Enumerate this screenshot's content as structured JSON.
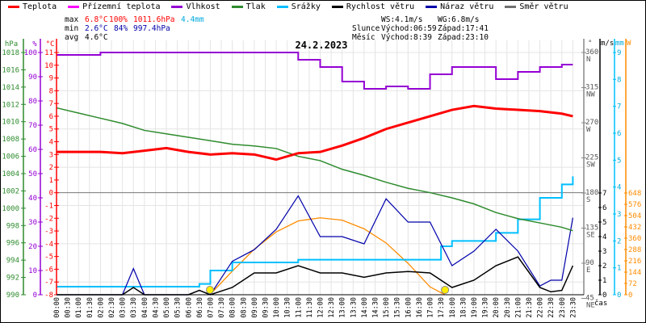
{
  "legend": [
    {
      "label": "Teplota",
      "color": "#ff0000"
    },
    {
      "label": "Přízemní teplota",
      "color": "#ff00ff"
    },
    {
      "label": "Vlhkost",
      "color": "#9400d3"
    },
    {
      "label": "Tlak",
      "color": "#2e8b2e"
    },
    {
      "label": "Srážky",
      "color": "#00bfff"
    },
    {
      "label": "Rychlost větru",
      "color": "#000000"
    },
    {
      "label": "Náraz větru",
      "color": "#0000aa"
    },
    {
      "label": "Směr větru",
      "color": "#707070"
    }
  ],
  "stats": {
    "max_label": "max",
    "min_label": "min",
    "avg_label": "avg",
    "max_temp": "6.8°C",
    "max_hum": "100%",
    "max_press": "1011.6hPa",
    "max_rain": "4.4mm",
    "min_temp": "2.6°C",
    "min_hum": "84%",
    "min_press": "997.4hPa",
    "avg_temp": "4.6°C",
    "ws": "WS:4.1m/s",
    "wg": "WG:6.8m/s",
    "sun_label": "Slunce",
    "sun_rise": "Východ:06:59",
    "sun_set": "Západ:17:41",
    "moon_label": "Měsíc",
    "moon_rise": "Východ:8:39",
    "moon_set": "Západ:23:10"
  },
  "chart_data": {
    "type": "line",
    "title": "24.2.2023",
    "xlabel": "čas",
    "x_ticks": [
      "00:00",
      "00:30",
      "01:00",
      "01:30",
      "02:00",
      "02:30",
      "03:00",
      "03:30",
      "04:00",
      "04:30",
      "05:00",
      "05:30",
      "06:00",
      "06:30",
      "07:00",
      "07:30",
      "08:00",
      "08:30",
      "09:00",
      "09:30",
      "10:00",
      "10:30",
      "11:00",
      "11:30",
      "12:00",
      "12:30",
      "13:00",
      "13:30",
      "14:00",
      "14:30",
      "15:00",
      "15:30",
      "16:00",
      "16:30",
      "17:00",
      "17:30",
      "18:00",
      "18:30",
      "19:00",
      "19:30",
      "20:00",
      "20:30",
      "21:00",
      "21:30",
      "22:00",
      "22:30",
      "23:00",
      "23:30"
    ],
    "axes": {
      "pressure": {
        "unit": "hPa",
        "range": [
          990,
          1018
        ],
        "ticks": [
          "1018",
          "1016",
          "1014",
          "1012",
          "1010",
          "1008",
          "1006",
          "1004",
          "1002",
          "1000",
          "998",
          "996",
          "994",
          "992",
          "990"
        ]
      },
      "humidity": {
        "unit": "%",
        "range": [
          0,
          100
        ],
        "ticks": [
          "100",
          "90",
          "80",
          "70",
          "60",
          "50",
          "40",
          "30",
          "20",
          "10",
          "0"
        ]
      },
      "temperature": {
        "unit": "°C",
        "range": [
          -8,
          11
        ],
        "ticks": [
          "11",
          "10",
          "9",
          "8",
          "7",
          "6",
          "5",
          "4",
          "3",
          "2",
          "1",
          "0",
          "-1",
          "-2",
          "-3",
          "-4",
          "-5",
          "-6",
          "-7",
          "-8"
        ]
      },
      "direction": {
        "unit": "°",
        "ticks": [
          {
            "v": "360",
            "d": "N"
          },
          {
            "v": "315",
            "d": "NW"
          },
          {
            "v": "270",
            "d": "W"
          },
          {
            "v": "225",
            "d": "SW"
          },
          {
            "v": "180",
            "d": "S"
          },
          {
            "v": "135",
            "d": "SE"
          },
          {
            "v": "90",
            "d": "E"
          },
          {
            "v": "45",
            "d": "NE"
          }
        ]
      },
      "wind": {
        "unit": "m/s",
        "range": [
          0,
          7
        ],
        "ticks": [
          "7",
          "6",
          "5",
          "4",
          "3",
          "2",
          "1",
          "0"
        ]
      },
      "rain": {
        "unit": "mm",
        "range": [
          0,
          9
        ],
        "ticks": [
          "9",
          "8",
          "7",
          "6",
          "5",
          "4",
          "3",
          "2",
          "1",
          "0"
        ]
      },
      "solar": {
        "unit": "W",
        "range": [
          0,
          648
        ],
        "ticks": [
          "648",
          "576",
          "504",
          "432",
          "360",
          "288",
          "216",
          "144",
          "72",
          "0"
        ]
      }
    },
    "series": [
      {
        "name": "Teplota",
        "color": "#ff0000",
        "unit": "°C",
        "x": [
          0,
          1,
          2,
          3,
          4,
          5,
          6,
          7,
          8,
          9,
          10,
          11,
          12,
          13,
          14,
          15,
          16,
          17,
          18,
          19,
          20,
          21,
          22,
          23,
          23.5
        ],
        "values": [
          3.2,
          3.2,
          3.2,
          3.1,
          3.3,
          3.5,
          3.2,
          3.0,
          3.1,
          3.0,
          2.6,
          3.1,
          3.2,
          3.7,
          4.3,
          5.0,
          5.5,
          6.0,
          6.5,
          6.8,
          6.6,
          6.5,
          6.4,
          6.2,
          6.0
        ]
      },
      {
        "name": "Tlak",
        "color": "#2e8b2e",
        "unit": "hPa",
        "x": [
          0,
          1,
          2,
          3,
          4,
          5,
          6,
          7,
          8,
          9,
          10,
          11,
          12,
          13,
          14,
          15,
          16,
          17,
          18,
          19,
          20,
          21,
          22,
          23,
          23.5
        ],
        "values": [
          1011.6,
          1011.0,
          1010.4,
          1009.8,
          1009.0,
          1008.6,
          1008.2,
          1007.8,
          1007.4,
          1007.2,
          1006.9,
          1006.0,
          1005.5,
          1004.5,
          1003.8,
          1003.0,
          1002.3,
          1001.8,
          1001.2,
          1000.5,
          999.5,
          998.8,
          998.3,
          997.8,
          997.4
        ]
      },
      {
        "name": "Vlhkost",
        "color": "#9400d3",
        "unit": "%",
        "x": [
          0,
          2,
          4,
          6,
          8,
          10,
          11,
          12,
          13,
          14,
          15,
          16,
          17,
          18,
          19,
          20,
          21,
          22,
          23,
          23.5
        ],
        "values": [
          99,
          100,
          100,
          100,
          100,
          100,
          97,
          94,
          88,
          85,
          86,
          85,
          91,
          94,
          94,
          89,
          92,
          94,
          95,
          95
        ]
      },
      {
        "name": "Srážky",
        "color": "#00bfff",
        "unit": "mm",
        "x": [
          0,
          3.5,
          6.5,
          7,
          8,
          10,
          11,
          12,
          14,
          15,
          16,
          17,
          17.5,
          18,
          20,
          21,
          22,
          23,
          23.5
        ],
        "values": [
          0.3,
          0.3,
          0.4,
          0.9,
          1.2,
          1.2,
          1.3,
          1.3,
          1.3,
          1.3,
          1.3,
          1.3,
          1.8,
          2.0,
          2.3,
          2.8,
          3.6,
          4.1,
          4.4
        ]
      },
      {
        "name": "Rychlost větru",
        "color": "#000000",
        "unit": "m/s",
        "x": [
          0,
          3,
          3.5,
          4,
          6,
          6.5,
          7,
          8,
          9,
          10,
          11,
          12,
          13,
          14,
          15,
          16,
          17,
          18,
          19,
          20,
          21,
          22,
          22.5,
          23,
          23.5
        ],
        "values": [
          0,
          0,
          0.5,
          0,
          0,
          0.3,
          0,
          0.5,
          1.5,
          1.5,
          2.0,
          1.5,
          1.5,
          1.2,
          1.5,
          1.6,
          1.5,
          0.5,
          1.0,
          2.0,
          2.6,
          0.5,
          0.2,
          0.3,
          2.0
        ]
      },
      {
        "name": "Náraz větru",
        "color": "#0000aa",
        "unit": "m/s",
        "x": [
          0,
          3,
          3.5,
          4,
          6,
          6.5,
          7,
          8,
          9,
          10,
          11,
          12,
          13,
          14,
          15,
          16,
          17,
          18,
          19,
          20,
          21,
          22,
          22.5,
          23,
          23.5
        ],
        "values": [
          0,
          0,
          1.8,
          0,
          0,
          0.3,
          0,
          2.3,
          3.1,
          4.5,
          6.8,
          4.0,
          4.0,
          3.5,
          6.6,
          5.0,
          5.0,
          2.0,
          3.0,
          4.5,
          3.0,
          0.6,
          1.0,
          1.0,
          5.3
        ]
      },
      {
        "name": "Slunce (W)",
        "color": "#ff8c00",
        "unit": "W",
        "x": [
          6.98,
          8,
          9,
          10,
          11,
          12,
          13,
          14,
          15,
          16,
          17,
          17.68
        ],
        "values": [
          0,
          150,
          290,
          400,
          470,
          490,
          475,
          420,
          330,
          200,
          50,
          0
        ]
      }
    ],
    "sunrise_marker": "06:59",
    "sunset_marker": "17:41",
    "zero_line": 0
  }
}
